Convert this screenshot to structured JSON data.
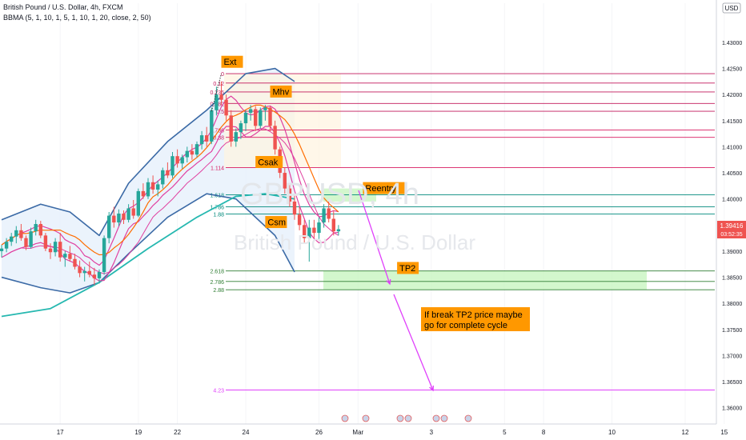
{
  "header": {
    "symbol_title": "British Pound / U.S. Dollar, 4h, FXCM",
    "indicator": "BBMA (5, 1, 10, 1, 5, 1, 10, 1, 20, close, 2, 50)",
    "currency_badge": "USD"
  },
  "watermark": {
    "ticker": "GBPUSD, 4h",
    "name": "British Pound / U.S. Dollar"
  },
  "price_tag": {
    "price": "1.39416",
    "countdown": "03:52:35"
  },
  "colors": {
    "up_candle": "#26a69a",
    "down_candle": "#ef5350",
    "bb_band": "#3b6aa6",
    "bb_fill": "#e6f0fb",
    "ema50": "#26b8b0",
    "ma_high": "#e040a0",
    "ma_low": "#ff6d00",
    "annotation_bg": "#ff9800",
    "target_zone": "#c8f5c0",
    "arrow": "#e040fb"
  },
  "chart_data": {
    "type": "candlestick",
    "title": "British Pound / U.S. Dollar, 4h, FXCM",
    "yaxis": {
      "min": 1.3575,
      "max": 1.4375,
      "ticks": [
        "1.43000",
        "1.42500",
        "1.42000",
        "1.41500",
        "1.41000",
        "1.40500",
        "1.40000",
        "1.39500",
        "1.39000",
        "1.38500",
        "1.38000",
        "1.37500",
        "1.37000",
        "1.36500",
        "1.36000"
      ]
    },
    "xaxis": {
      "tick_labels": [
        {
          "label": "17",
          "idx": 12
        },
        {
          "label": "19",
          "idx": 28
        },
        {
          "label": "22",
          "idx": 36
        },
        {
          "label": "24",
          "idx": 50
        },
        {
          "label": "26",
          "idx": 65
        },
        {
          "label": "Mar",
          "idx": 73
        },
        {
          "label": "3",
          "idx": 88
        },
        {
          "label": "5",
          "idx": 103
        },
        {
          "label": "8",
          "idx": 111
        },
        {
          "label": "10",
          "idx": 125
        },
        {
          "label": "12",
          "idx": 140
        },
        {
          "label": "15",
          "idx": 148
        },
        {
          "label": "17",
          "idx": 163
        }
      ]
    },
    "candles": [
      [
        1.39,
        1.3912,
        1.3888,
        1.3905
      ],
      [
        1.3905,
        1.3925,
        1.3898,
        1.3918
      ],
      [
        1.3918,
        1.3935,
        1.391,
        1.3928
      ],
      [
        1.3928,
        1.3948,
        1.3915,
        1.394
      ],
      [
        1.394,
        1.3952,
        1.392,
        1.3925
      ],
      [
        1.3925,
        1.393,
        1.3902,
        1.3908
      ],
      [
        1.3908,
        1.3945,
        1.3905,
        1.3938
      ],
      [
        1.3938,
        1.396,
        1.393,
        1.3952
      ],
      [
        1.3952,
        1.3958,
        1.3925,
        1.393
      ],
      [
        1.393,
        1.3935,
        1.39,
        1.3905
      ],
      [
        1.3905,
        1.3915,
        1.3885,
        1.3898
      ],
      [
        1.3898,
        1.3925,
        1.389,
        1.3918
      ],
      [
        1.3918,
        1.3935,
        1.388,
        1.3888
      ],
      [
        1.3888,
        1.39,
        1.387,
        1.3895
      ],
      [
        1.3895,
        1.391,
        1.388,
        1.3885
      ],
      [
        1.3885,
        1.3895,
        1.3865,
        1.387
      ],
      [
        1.387,
        1.3882,
        1.385,
        1.3858
      ],
      [
        1.3858,
        1.387,
        1.3842,
        1.3862
      ],
      [
        1.3862,
        1.388,
        1.385,
        1.3855
      ],
      [
        1.3855,
        1.3868,
        1.3835,
        1.3848
      ],
      [
        1.3848,
        1.3865,
        1.3838,
        1.386
      ],
      [
        1.386,
        1.393,
        1.3855,
        1.3925
      ],
      [
        1.3925,
        1.3975,
        1.3915,
        1.3968
      ],
      [
        1.3968,
        1.3985,
        1.3945,
        1.3955
      ],
      [
        1.3955,
        1.398,
        1.3948,
        1.3972
      ],
      [
        1.3972,
        1.3978,
        1.3952,
        1.396
      ],
      [
        1.396,
        1.399,
        1.3955,
        1.3982
      ],
      [
        1.3982,
        1.3998,
        1.3962,
        1.3968
      ],
      [
        1.3968,
        1.402,
        1.3965,
        1.4015
      ],
      [
        1.4015,
        1.403,
        1.4,
        1.4005
      ],
      [
        1.4005,
        1.404,
        1.4,
        1.4032
      ],
      [
        1.4032,
        1.4045,
        1.401,
        1.4018
      ],
      [
        1.4018,
        1.4035,
        1.4005,
        1.4028
      ],
      [
        1.4028,
        1.406,
        1.402,
        1.4055
      ],
      [
        1.4055,
        1.407,
        1.404,
        1.4045
      ],
      [
        1.4045,
        1.409,
        1.404,
        1.4082
      ],
      [
        1.4082,
        1.4095,
        1.406,
        1.4068
      ],
      [
        1.4068,
        1.4085,
        1.4058,
        1.408
      ],
      [
        1.408,
        1.41,
        1.407,
        1.4092
      ],
      [
        1.4092,
        1.4105,
        1.4075,
        1.4085
      ],
      [
        1.4085,
        1.411,
        1.408,
        1.4105
      ],
      [
        1.4105,
        1.413,
        1.4095,
        1.4122
      ],
      [
        1.4122,
        1.4138,
        1.41,
        1.411
      ],
      [
        1.411,
        1.4175,
        1.4105,
        1.417
      ],
      [
        1.417,
        1.4215,
        1.416,
        1.42
      ],
      [
        1.42,
        1.4225,
        1.418,
        1.419
      ],
      [
        1.419,
        1.42,
        1.415,
        1.416
      ],
      [
        1.416,
        1.417,
        1.41,
        1.411
      ],
      [
        1.411,
        1.4135,
        1.41,
        1.4128
      ],
      [
        1.4128,
        1.415,
        1.4115,
        1.4145
      ],
      [
        1.4145,
        1.417,
        1.413,
        1.4165
      ],
      [
        1.4165,
        1.418,
        1.415,
        1.4172
      ],
      [
        1.4172,
        1.4178,
        1.413,
        1.414
      ],
      [
        1.414,
        1.4175,
        1.4135,
        1.417
      ],
      [
        1.417,
        1.418,
        1.415,
        1.4175
      ],
      [
        1.4175,
        1.4178,
        1.413,
        1.414
      ],
      [
        1.414,
        1.415,
        1.4085,
        1.4095
      ],
      [
        1.4095,
        1.41,
        1.404,
        1.405
      ],
      [
        1.405,
        1.406,
        1.401,
        1.402
      ],
      [
        1.402,
        1.403,
        1.3985,
        1.3995
      ],
      [
        1.3995,
        1.401,
        1.396,
        1.397
      ],
      [
        1.397,
        1.3985,
        1.394,
        1.395
      ],
      [
        1.395,
        1.396,
        1.3915,
        1.3925
      ],
      [
        1.3925,
        1.396,
        1.388,
        1.3945
      ],
      [
        1.3945,
        1.396,
        1.3925,
        1.3935
      ],
      [
        1.3935,
        1.3965,
        1.392,
        1.3955
      ],
      [
        1.3955,
        1.399,
        1.3945,
        1.3982
      ],
      [
        1.3982,
        1.3995,
        1.3955,
        1.3962
      ],
      [
        1.3962,
        1.3978,
        1.393,
        1.3938
      ],
      [
        1.3938,
        1.395,
        1.393,
        1.3942
      ]
    ],
    "bb_upper": [
      [
        0,
        1.396
      ],
      [
        8,
        1.399
      ],
      [
        14,
        1.3975
      ],
      [
        20,
        1.393
      ],
      [
        26,
        1.403
      ],
      [
        34,
        1.411
      ],
      [
        42,
        1.417
      ],
      [
        50,
        1.424
      ],
      [
        56,
        1.425
      ],
      [
        60,
        1.4225
      ]
    ],
    "bb_lower": [
      [
        0,
        1.385
      ],
      [
        8,
        1.383
      ],
      [
        14,
        1.382
      ],
      [
        20,
        1.384
      ],
      [
        26,
        1.3895
      ],
      [
        34,
        1.3965
      ],
      [
        42,
        1.401
      ],
      [
        48,
        1.4
      ],
      [
        56,
        1.393
      ],
      [
        60,
        1.386
      ]
    ],
    "ema50": [
      [
        0,
        1.3775
      ],
      [
        10,
        1.379
      ],
      [
        20,
        1.384
      ],
      [
        30,
        1.3905
      ],
      [
        40,
        1.3965
      ],
      [
        48,
        1.4005
      ],
      [
        54,
        1.401
      ],
      [
        60,
        1.4
      ]
    ],
    "fib_levels": [
      {
        "label": "0",
        "price": 1.424
      },
      {
        "label": "0.12",
        "price": 1.4222
      },
      {
        "label": "0.236",
        "price": 1.4205
      },
      {
        "label": "0.382",
        "price": 1.4183
      },
      {
        "label": "0.5",
        "price": 1.4168
      },
      {
        "label": "0.786",
        "price": 1.4132
      },
      {
        "label": "0.88",
        "price": 1.4118
      },
      {
        "label": "1.114",
        "price": 1.406
      },
      {
        "label": "1.618",
        "price": 1.4008
      },
      {
        "label": "1.786",
        "price": 1.3985
      },
      {
        "label": "1.88",
        "price": 1.3971
      },
      {
        "label": "2.618",
        "price": 1.3862
      },
      {
        "label": "2.786",
        "price": 1.3842
      },
      {
        "label": "2.88",
        "price": 1.3826
      },
      {
        "label": "4.23",
        "price": 1.3634
      }
    ],
    "annotations": [
      {
        "text": "Ext",
        "idx": 45,
        "price": 1.4262
      },
      {
        "text": "Mhv",
        "idx": 55,
        "price": 1.4205
      },
      {
        "text": "Csak",
        "idx": 52,
        "price": 1.407
      },
      {
        "text": "Reentry",
        "idx": 74,
        "price": 1.402
      },
      {
        "text": "Csm",
        "idx": 54,
        "price": 1.3955
      },
      {
        "text": "TP2",
        "idx": 81,
        "price": 1.3867
      }
    ],
    "note": [
      "If break TP2 price maybe",
      "go for complete cycle"
    ]
  }
}
